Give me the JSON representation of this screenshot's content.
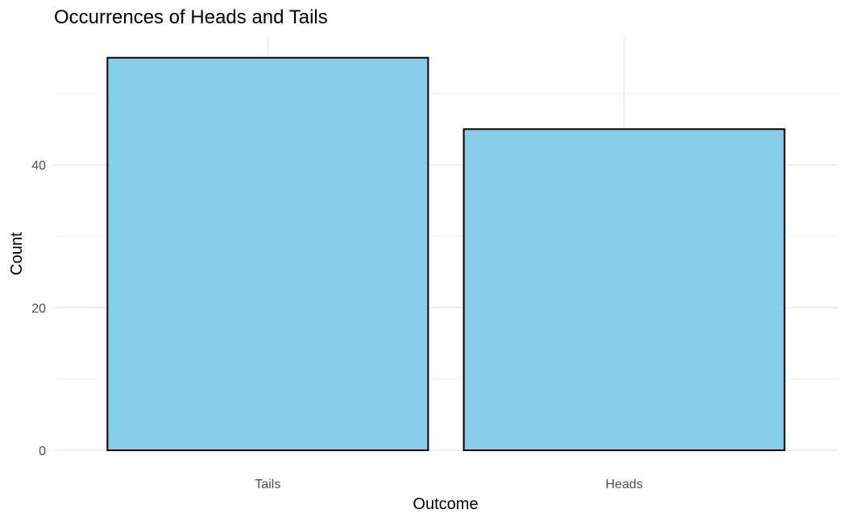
{
  "chart_data": {
    "type": "bar",
    "title": "Occurrences of Heads and Tails",
    "xlabel": "Outcome",
    "ylabel": "Count",
    "categories": [
      "Tails",
      "Heads"
    ],
    "values": [
      55,
      45
    ],
    "ylim": [
      0,
      55
    ],
    "y_ticks": [
      0,
      20,
      40
    ],
    "grid": true,
    "legend": "none",
    "colors": {
      "bar_fill": "#87CEEB",
      "bar_stroke": "#000000"
    }
  }
}
